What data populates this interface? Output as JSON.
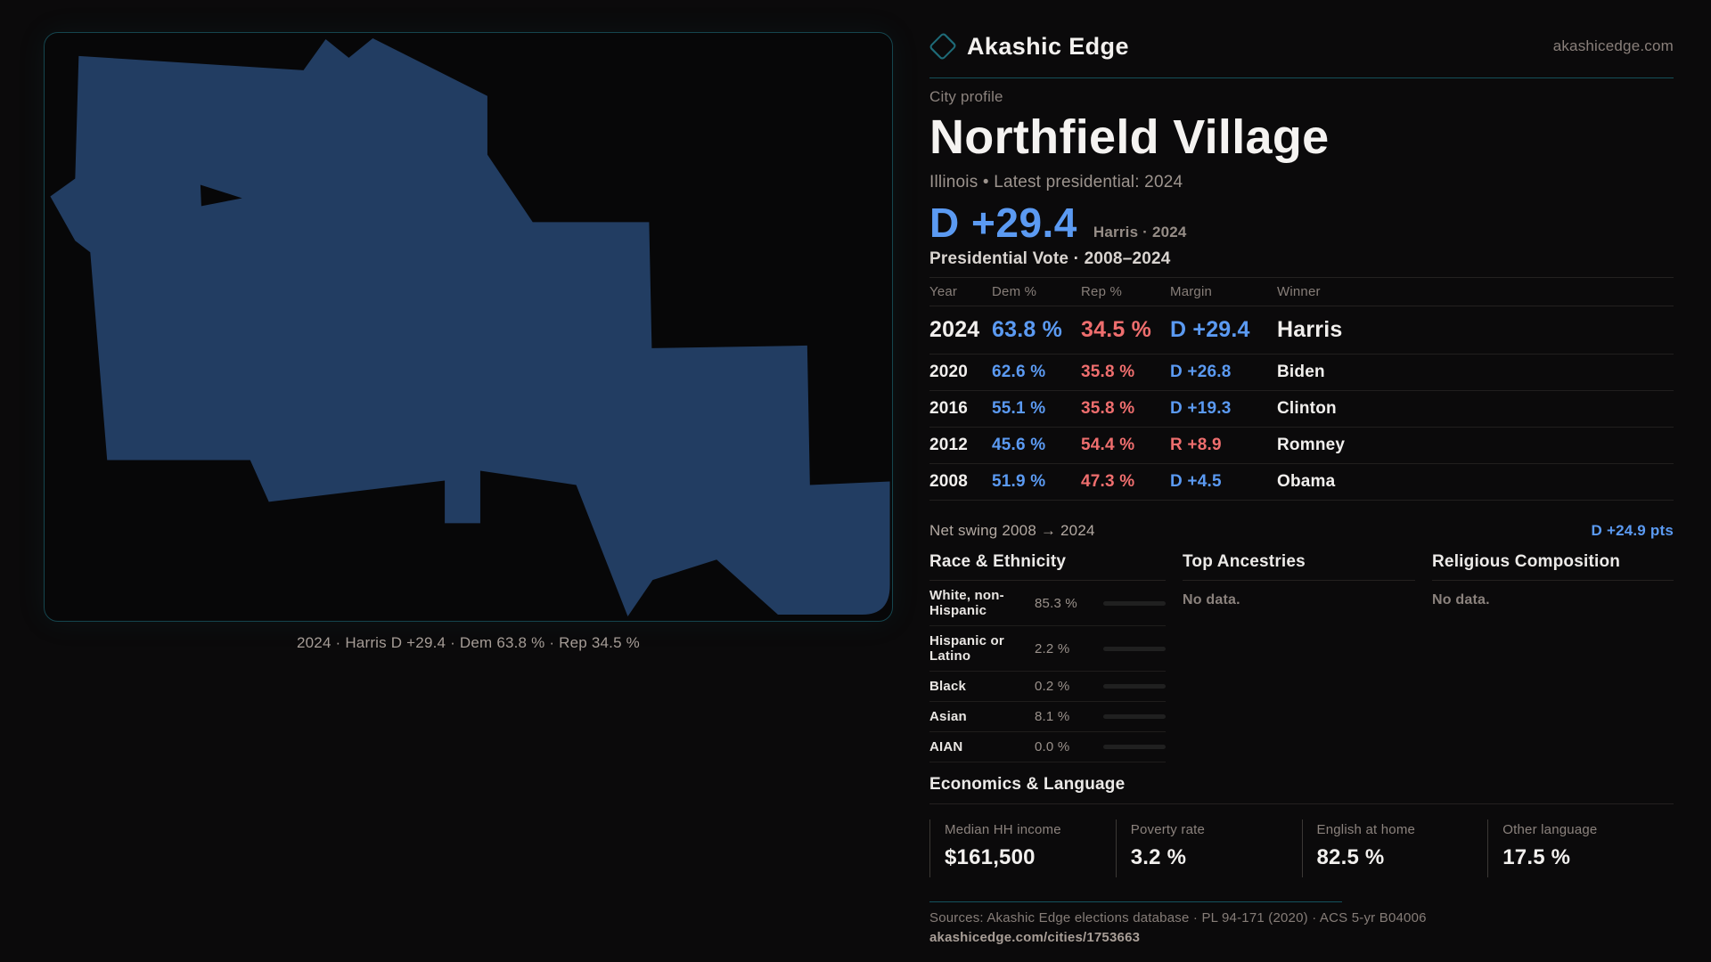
{
  "brand": {
    "name": "Akashic Edge",
    "domain": "akashicedge.com"
  },
  "profile": {
    "kicker": "City profile",
    "title": "Northfield Village",
    "subtitle": "Illinois • Latest presidential: 2024",
    "headline_margin": "D +29.4",
    "headline_note": "Harris · 2024"
  },
  "map": {
    "caption": "2024 · Harris D +29.4 · Dem 63.8 % · Rep 34.5 %",
    "shape_fill": "#223d62",
    "panel_border": "#15454e"
  },
  "vote_table": {
    "title": "Presidential Vote · 2008–2024",
    "columns": [
      "Year",
      "Dem %",
      "Rep %",
      "Margin",
      "Winner"
    ],
    "rows": [
      {
        "year": "2024",
        "dem": "63.8 %",
        "rep": "34.5 %",
        "margin": "D +29.4",
        "party": "D",
        "winner": "Harris",
        "featured": true
      },
      {
        "year": "2020",
        "dem": "62.6 %",
        "rep": "35.8 %",
        "margin": "D +26.8",
        "party": "D",
        "winner": "Biden",
        "featured": false
      },
      {
        "year": "2016",
        "dem": "55.1 %",
        "rep": "35.8 %",
        "margin": "D +19.3",
        "party": "D",
        "winner": "Clinton",
        "featured": false
      },
      {
        "year": "2012",
        "dem": "45.6 %",
        "rep": "54.4 %",
        "margin": "R +8.9",
        "party": "R",
        "winner": "Romney",
        "featured": false
      },
      {
        "year": "2008",
        "dem": "51.9 %",
        "rep": "47.3 %",
        "margin": "D +4.5",
        "party": "D",
        "winner": "Obama",
        "featured": false
      }
    ]
  },
  "net_swing": {
    "label": "Net swing 2008 → 2024",
    "value": "D +24.9 pts"
  },
  "race": {
    "title": "Race & Ethnicity",
    "rows": [
      {
        "label": "White, non-Hispanic",
        "value": "85.3 %",
        "pct": 85.3,
        "color": "#93a7c7"
      },
      {
        "label": "Hispanic or Latino",
        "value": "2.2 %",
        "pct": 2.2,
        "color": "#e9940f"
      },
      {
        "label": "Black",
        "value": "0.2 %",
        "pct": 0.2,
        "color": "#93a7c7"
      },
      {
        "label": "Asian",
        "value": "8.1 %",
        "pct": 8.1,
        "color": "#2ec492"
      },
      {
        "label": "AIAN",
        "value": "0.0 %",
        "pct": 0.0,
        "color": "#93a7c7"
      }
    ]
  },
  "ancestries": {
    "title": "Top Ancestries",
    "empty": "No data."
  },
  "religion": {
    "title": "Religious Composition",
    "empty": "No data."
  },
  "economics": {
    "title": "Economics & Language",
    "cards": [
      {
        "label": "Median HH income",
        "value": "$161,500"
      },
      {
        "label": "Poverty rate",
        "value": "3.2 %"
      },
      {
        "label": "English at home",
        "value": "82.5 %"
      },
      {
        "label": "Other language",
        "value": "17.5 %"
      }
    ]
  },
  "footer": {
    "sources": "Sources: Akashic Edge elections database · PL 94-171 (2020) · ACS 5-yr B04006",
    "permalink": "akashicedge.com/cities/1753663"
  },
  "colors": {
    "dem_blue": "#5b9af2",
    "rep_red": "#ef6e6e",
    "accent_teal": "#1e6b78"
  }
}
